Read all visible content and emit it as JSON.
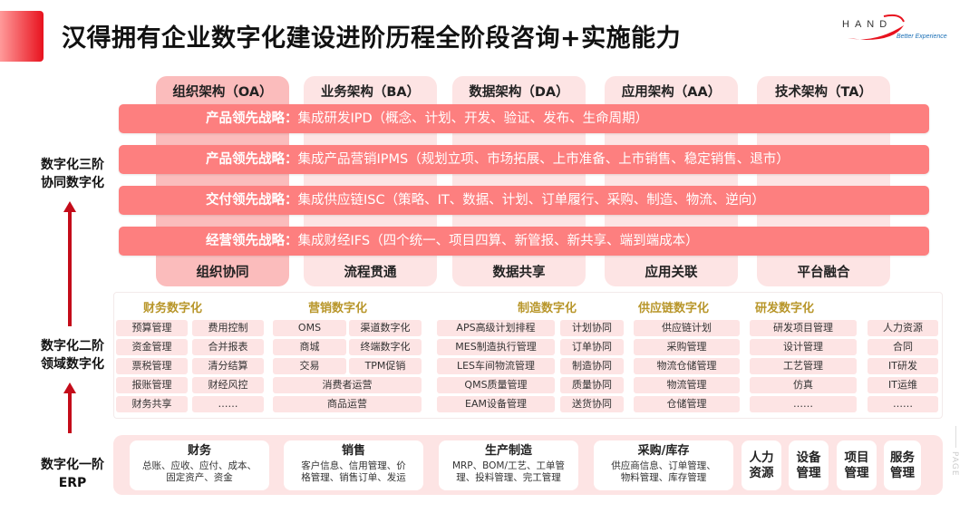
{
  "title": "汉得拥有企业数字化建设进阶历程全阶段咨询+实施能力",
  "logo": {
    "brand": "HAND",
    "tagline": "Better Experience",
    "color": "#e8121e"
  },
  "colors": {
    "accent": "#e8121e",
    "strategy_bar": "#fd7f7f",
    "pillar": "#fde4e4",
    "pillar_highlight": "#fbbcbc",
    "domain_heading": "#b8962a",
    "arrow": "#c40c1a"
  },
  "pillars": [
    {
      "top": "组织架构（OA）",
      "bottom": "组织协同"
    },
    {
      "top": "业务架构（BA）",
      "bottom": "流程贯通"
    },
    {
      "top": "数据架构（DA）",
      "bottom": "数据共享"
    },
    {
      "top": "应用架构（AA）",
      "bottom": "应用关联"
    },
    {
      "top": "技术架构（TA）",
      "bottom": "平台融合"
    }
  ],
  "strategies": [
    {
      "label": "产品领先战略：",
      "text": "集成研发IPD（概念、计划、开发、验证、发布、生命周期）"
    },
    {
      "label": "产品领先战略：",
      "text": "集成产品营销IPMS（规划立项、市场拓展、上市准备、上市销售、稳定销售、退市）"
    },
    {
      "label": "交付领先战略：",
      "text": "集成供应链ISC（策略、IT、数据、计划、订单履行、采购、制造、物流、逆向）"
    },
    {
      "label": "经营领先战略：",
      "text": "集成财经IFS（四个统一、项目四算、新管报、新共享、端到端成本）"
    }
  ],
  "levels": [
    {
      "line1": "数字化三阶",
      "line2": "协同数字化"
    },
    {
      "line1": "数字化二阶",
      "line2": "领域数字化"
    },
    {
      "line1": "数字化一阶",
      "line2": "ERP"
    }
  ],
  "domains": {
    "headings": [
      "财务数字化",
      "营销数字化",
      "制造数字化",
      "供应链数字化",
      "研发数字化"
    ],
    "finance_a": [
      "预算管理",
      "资金管理",
      "票税管理",
      "报账管理",
      "财务共享"
    ],
    "finance_b": [
      "费用控制",
      "合并报表",
      "清分结算",
      "财经风控",
      "……"
    ],
    "marketing_a": [
      "OMS",
      "商城",
      "交易"
    ],
    "marketing_b": [
      "渠道数字化",
      "终端数字化",
      "TPM促销"
    ],
    "marketing_wide": [
      "消费者运营",
      "商品运营"
    ],
    "manufacturing_a": [
      "APS高级计划排程",
      "MES制造执行管理",
      "LES车间物流管理",
      "QMS质量管理",
      "EAM设备管理"
    ],
    "manufacturing_b": [
      "计划协同",
      "订单协同",
      "制造协同",
      "质量协同",
      "送货协同"
    ],
    "supply_chain": [
      "供应链计划",
      "采购管理",
      "物流仓储管理",
      "物流管理",
      "仓储管理"
    ],
    "rnd": [
      "研发项目管理",
      "设计管理",
      "工艺管理",
      "仿真",
      "……"
    ],
    "other": [
      "人力资源",
      "合同",
      "IT研发",
      "IT运维",
      "……"
    ]
  },
  "erp": {
    "cards": [
      {
        "title": "财务",
        "line1": "总账、应收、应付、成本、",
        "line2": "固定资产、资金"
      },
      {
        "title": "销售",
        "line1": "客户信息、信用管理、价",
        "line2": "格管理、销售订单、发运"
      },
      {
        "title": "生产制造",
        "line1": "MRP、BOM/工艺、工单管",
        "line2": "理、投料管理、完工管理"
      },
      {
        "title": "采购/库存",
        "line1": "供应商信息、订单管理、",
        "line2": "物料管理、库存管理"
      }
    ],
    "small": [
      {
        "l1": "人力",
        "l2": "资源"
      },
      {
        "l1": "设备",
        "l2": "管理"
      },
      {
        "l1": "项目",
        "l2": "管理"
      },
      {
        "l1": "服务",
        "l2": "管理"
      }
    ]
  },
  "page_label": "PAGE"
}
